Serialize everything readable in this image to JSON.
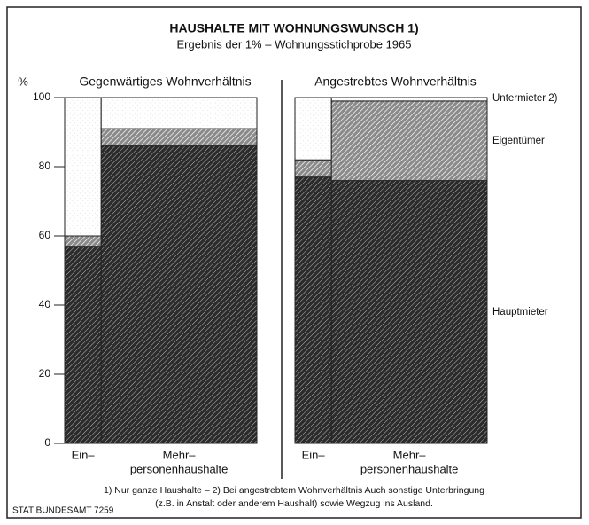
{
  "title": "HAUSHALTE MIT WOHNUNGSWUNSCH 1)",
  "subtitle": "Ergebnis der 1% – Wohnungsstichprobe 1965",
  "y_unit": "%",
  "x_label": "personenhaushalte",
  "footnotes": [
    "1) Nur ganze Haushalte – 2) Bei angestrebtem Wohnverhältnis Auch sonstige Unterbringung",
    "(z.B. in Anstalt oder anderem Haushalt) sowie Wegzug ins Ausland."
  ],
  "source": "STAT BUNDESAMT 7259",
  "chart_data": [
    {
      "type": "bar",
      "title": "Gegenwärtiges Wohnverhältnis",
      "categories": [
        "Ein–",
        "Mehr–"
      ],
      "widths": [
        19,
        81
      ],
      "series": [
        {
          "color": "#2b2b2b",
          "values": [
            57,
            86
          ]
        },
        {
          "color": "#8a8a8a",
          "values": [
            3,
            5
          ]
        },
        {
          "color": "#ffffff",
          "values": [
            40,
            9
          ]
        }
      ],
      "ylim": [
        0,
        100
      ],
      "yticks": [
        0,
        20,
        40,
        60,
        80,
        100
      ]
    },
    {
      "type": "bar",
      "title": "Angestrebtes Wohnverhältnis",
      "categories": [
        "Ein–",
        "Mehr–"
      ],
      "widths": [
        19,
        81
      ],
      "series": [
        {
          "name": "Hauptmieter",
          "color": "#2b2b2b",
          "values": [
            77,
            76
          ]
        },
        {
          "name": "Eigentümer",
          "color": "#8a8a8a",
          "values": [
            5,
            23
          ]
        },
        {
          "name": "Untermieter 2)",
          "color": "#ffffff",
          "values": [
            18,
            1
          ]
        }
      ],
      "ylim": [
        0,
        100
      ]
    }
  ]
}
